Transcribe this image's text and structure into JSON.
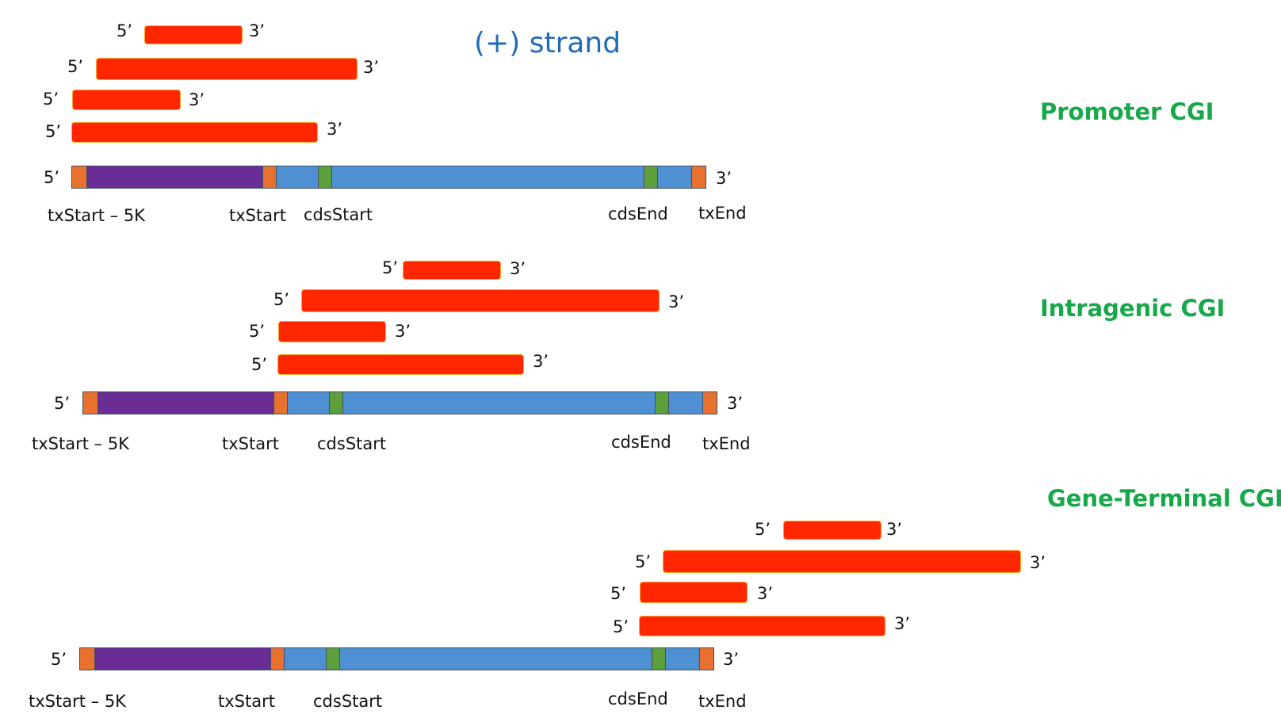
{
  "title": "(+) strand",
  "end5": "5’",
  "end3": "3’",
  "panels": [
    {
      "name": "Promoter CGI",
      "labels": {
        "tx_start_5k": "txStart – 5K",
        "tx_start": "txStart",
        "cds_start": "cdsStart",
        "cds_end": "cdsEnd",
        "tx_end": "txEnd"
      }
    },
    {
      "name": "Intragenic CGI",
      "labels": {
        "tx_start_5k": "txStart – 5K",
        "tx_start": "txStart",
        "cds_start": "cdsStart",
        "cds_end": "cdsEnd",
        "tx_end": "txEnd"
      }
    },
    {
      "name": "Gene-Terminal CGI",
      "labels": {
        "tx_start_5k": "txStart – 5K",
        "tx_start": "txStart",
        "cds_start": "cdsStart",
        "cds_end": "cdsEnd",
        "tx_end": "txEnd"
      }
    }
  ],
  "colors": {
    "cgi_bar": "#ff2600",
    "upstream_region": "#6a2d96",
    "transcript_body": "#4f90d2",
    "tx_boundary": "#e8712f",
    "cds_boundary": "#5d9f3a",
    "title": "#1f6bb6",
    "cgi_label": "#17a84a"
  }
}
